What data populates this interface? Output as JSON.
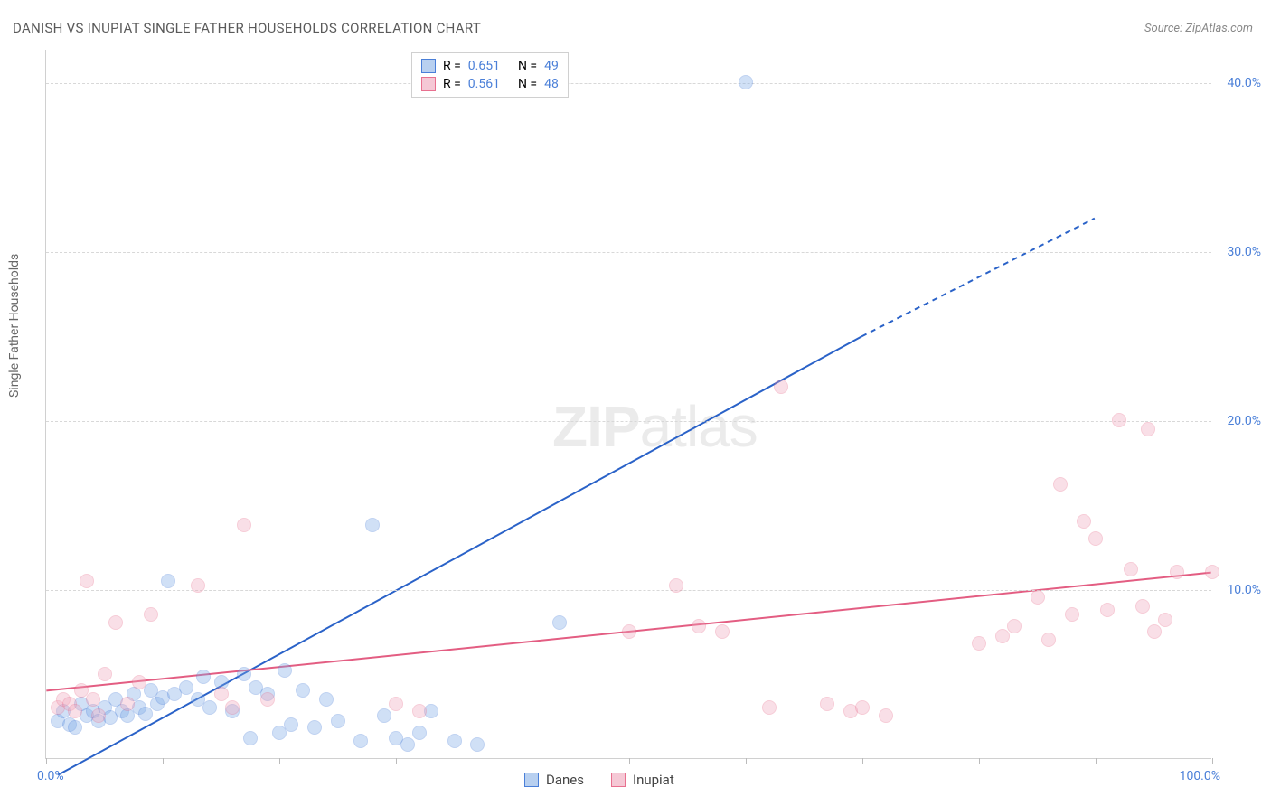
{
  "title": "DANISH VS INUPIAT SINGLE FATHER HOUSEHOLDS CORRELATION CHART",
  "source": "Source: ZipAtlas.com",
  "ylabel": "Single Father Households",
  "watermark_zip": "ZIP",
  "watermark_atlas": "atlas",
  "chart": {
    "type": "scatter-with-regression",
    "xlim": [
      0,
      100
    ],
    "ylim": [
      0,
      42
    ],
    "x_tick_positions": [
      0,
      10,
      20,
      30,
      40,
      50,
      60,
      70,
      80,
      90,
      100
    ],
    "x_axis_labels": {
      "left": "0.0%",
      "right": "100.0%"
    },
    "y_gridlines": [
      {
        "value": 10,
        "label": "10.0%"
      },
      {
        "value": 20,
        "label": "20.0%"
      },
      {
        "value": 30,
        "label": "30.0%"
      },
      {
        "value": 40,
        "label": "40.0%"
      }
    ],
    "background_color": "#ffffff",
    "grid_color": "#d8d8d8",
    "axis_color": "#d0d0d0",
    "axis_label_color": "#4a7fd8",
    "ylabel_color": "#666666",
    "title_color": "#5a5a5a",
    "marker_radius": 8,
    "marker_opacity": 0.35,
    "series": [
      {
        "name": "Danes",
        "fill_color": "#7aa8e6",
        "stroke_color": "#4a7fd8",
        "line_color": "#2a62c8",
        "line_width": 2,
        "R": "0.651",
        "N": "49",
        "regression": {
          "x1": 1,
          "y1": -1,
          "x2": 70,
          "y2": 25,
          "dash_from_x": 70,
          "x3": 90,
          "y3": 32
        },
        "points": [
          [
            1,
            2.2
          ],
          [
            1.5,
            2.8
          ],
          [
            2,
            2.0
          ],
          [
            2.5,
            1.8
          ],
          [
            3,
            3.2
          ],
          [
            3.5,
            2.5
          ],
          [
            4,
            2.8
          ],
          [
            4.5,
            2.2
          ],
          [
            5,
            3.0
          ],
          [
            5.5,
            2.4
          ],
          [
            6,
            3.5
          ],
          [
            6.5,
            2.8
          ],
          [
            7,
            2.5
          ],
          [
            7.5,
            3.8
          ],
          [
            8,
            3.0
          ],
          [
            8.5,
            2.6
          ],
          [
            9,
            4.0
          ],
          [
            9.5,
            3.2
          ],
          [
            10,
            3.6
          ],
          [
            10.5,
            10.5
          ],
          [
            11,
            3.8
          ],
          [
            12,
            4.2
          ],
          [
            13,
            3.5
          ],
          [
            13.5,
            4.8
          ],
          [
            14,
            3.0
          ],
          [
            15,
            4.5
          ],
          [
            16,
            2.8
          ],
          [
            17,
            5.0
          ],
          [
            17.5,
            1.2
          ],
          [
            18,
            4.2
          ],
          [
            19,
            3.8
          ],
          [
            20,
            1.5
          ],
          [
            20.5,
            5.2
          ],
          [
            21,
            2.0
          ],
          [
            22,
            4.0
          ],
          [
            23,
            1.8
          ],
          [
            24,
            3.5
          ],
          [
            25,
            2.2
          ],
          [
            27,
            1.0
          ],
          [
            28,
            13.8
          ],
          [
            29,
            2.5
          ],
          [
            30,
            1.2
          ],
          [
            31,
            0.8
          ],
          [
            32,
            1.5
          ],
          [
            33,
            2.8
          ],
          [
            35,
            1.0
          ],
          [
            37,
            0.8
          ],
          [
            44,
            8.0
          ],
          [
            60,
            40.0
          ]
        ]
      },
      {
        "name": "Inupiat",
        "fill_color": "#f0a5bb",
        "stroke_color": "#e8708f",
        "line_color": "#e35d82",
        "line_width": 2,
        "R": "0.561",
        "N": "48",
        "regression": {
          "x1": 0,
          "y1": 4.0,
          "x2": 100,
          "y2": 11.0
        },
        "points": [
          [
            1,
            3.0
          ],
          [
            1.5,
            3.5
          ],
          [
            2,
            3.2
          ],
          [
            2.5,
            2.8
          ],
          [
            3,
            4.0
          ],
          [
            3.5,
            10.5
          ],
          [
            4,
            3.5
          ],
          [
            4.5,
            2.5
          ],
          [
            5,
            5.0
          ],
          [
            6,
            8.0
          ],
          [
            7,
            3.2
          ],
          [
            8,
            4.5
          ],
          [
            9,
            8.5
          ],
          [
            13,
            10.2
          ],
          [
            15,
            3.8
          ],
          [
            16,
            3.0
          ],
          [
            17,
            13.8
          ],
          [
            19,
            3.5
          ],
          [
            30,
            3.2
          ],
          [
            32,
            2.8
          ],
          [
            50,
            7.5
          ],
          [
            54,
            10.2
          ],
          [
            56,
            7.8
          ],
          [
            58,
            7.5
          ],
          [
            62,
            3.0
          ],
          [
            63,
            22.0
          ],
          [
            67,
            3.2
          ],
          [
            69,
            2.8
          ],
          [
            70,
            3.0
          ],
          [
            72,
            2.5
          ],
          [
            80,
            6.8
          ],
          [
            82,
            7.2
          ],
          [
            83,
            7.8
          ],
          [
            85,
            9.5
          ],
          [
            86,
            7.0
          ],
          [
            87,
            16.2
          ],
          [
            88,
            8.5
          ],
          [
            89,
            14.0
          ],
          [
            90,
            13.0
          ],
          [
            91,
            8.8
          ],
          [
            92,
            20.0
          ],
          [
            93,
            11.2
          ],
          [
            94,
            9.0
          ],
          [
            94.5,
            19.5
          ],
          [
            95,
            7.5
          ],
          [
            96,
            8.2
          ],
          [
            97,
            11.0
          ],
          [
            100,
            11.0
          ]
        ]
      }
    ]
  },
  "legend_top": {
    "series1_swatch_fill": "#b8d0f0",
    "series1_swatch_border": "#4a7fd8",
    "series2_swatch_fill": "#f5c8d5",
    "series2_swatch_border": "#e8708f",
    "R_label": "R =",
    "N_label": "N ="
  },
  "legend_bottom": {
    "label1": "Danes",
    "label2": "Inupiat"
  }
}
